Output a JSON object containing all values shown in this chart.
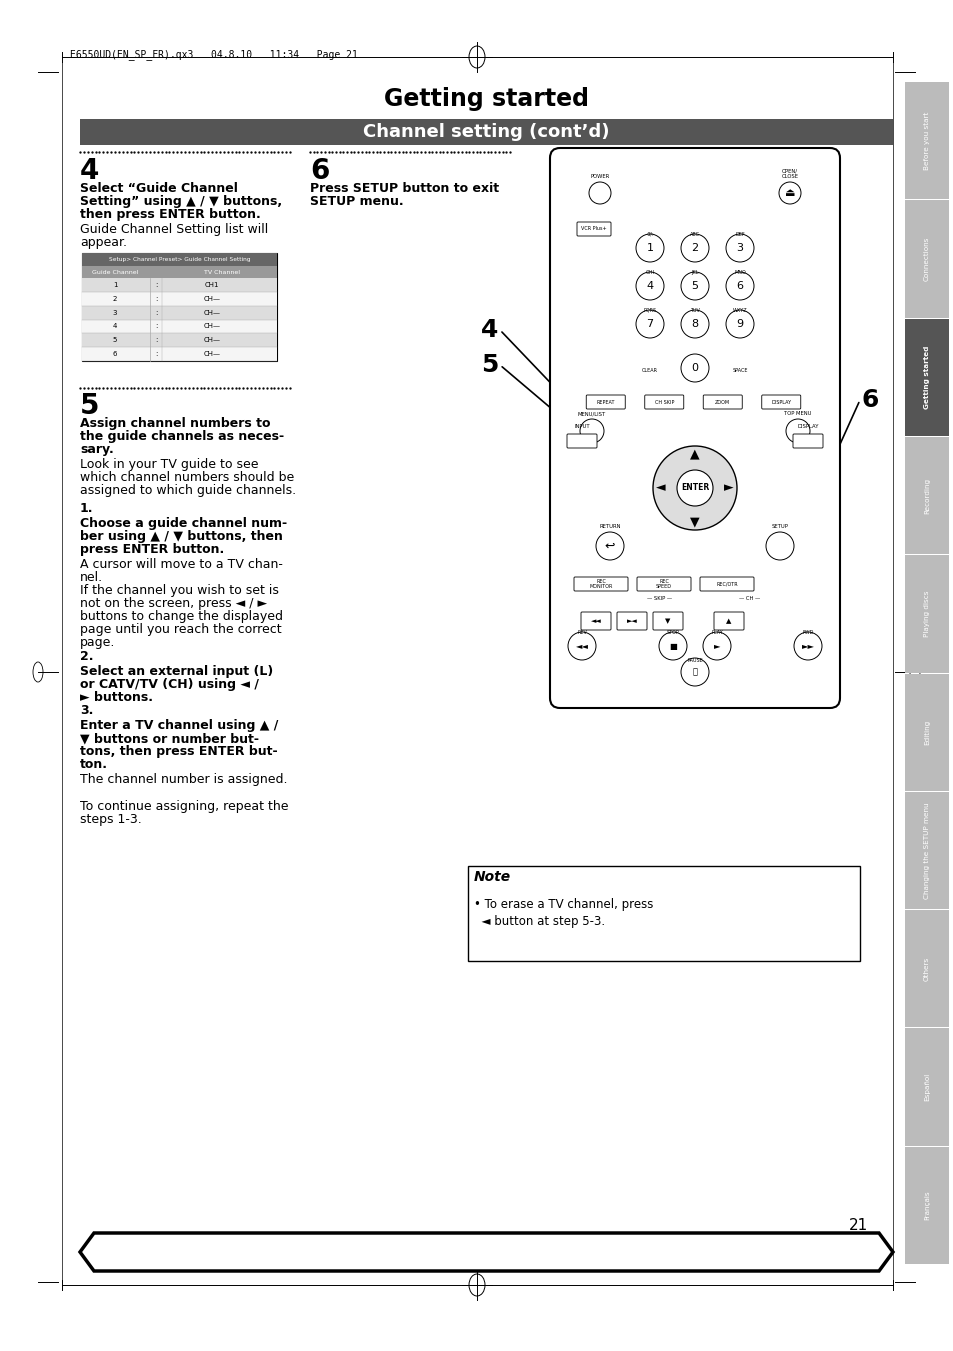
{
  "title": "Getting started",
  "subtitle": "Channel setting (cont’d)",
  "page_number": "21",
  "header_text": "E6550UD(EN_SP_FR).qx3   04.8.10   11:34   Page 21",
  "bg_color": "#ffffff",
  "subtitle_bg": "#555555",
  "subtitle_fg": "#ffffff",
  "sidebar_labels": [
    "Before you start",
    "Connections",
    "Getting started",
    "Recording",
    "Playing discs",
    "Editing",
    "Changing the SETUP menu",
    "Others",
    "Español",
    "Français"
  ],
  "active_sidebar": 2,
  "sidebar_active_color": "#555555",
  "sidebar_inactive_color": "#bbbbbb"
}
